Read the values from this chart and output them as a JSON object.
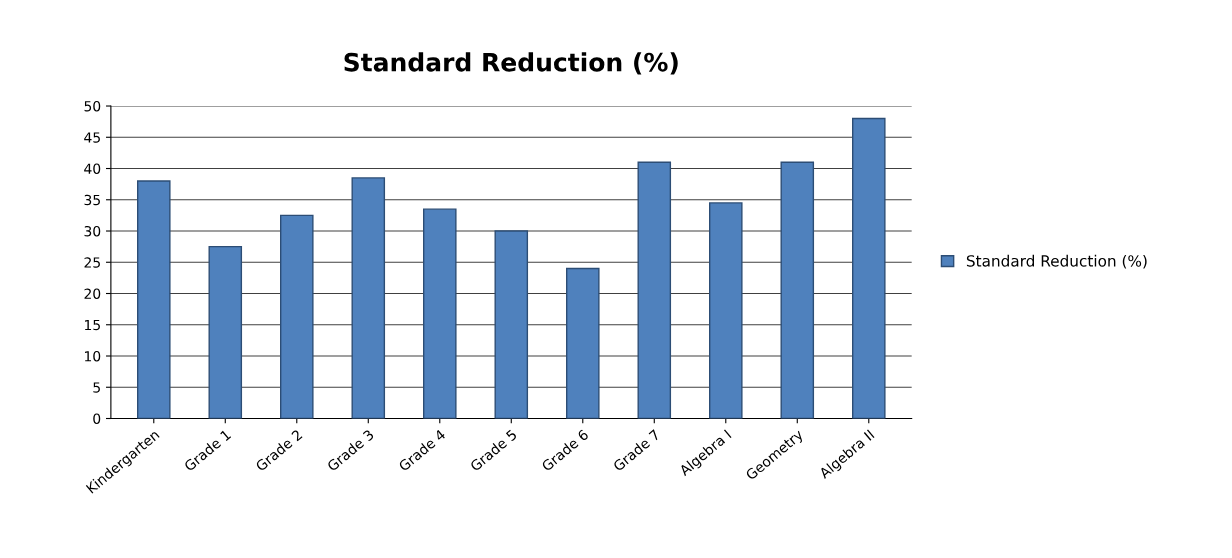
{
  "chart_data": {
    "type": "bar",
    "title": "Standard Reduction (%)",
    "categories": [
      "Kindergarten",
      "Grade 1",
      "Grade 2",
      "Grade 3",
      "Grade 4",
      "Grade 5",
      "Grade 6",
      "Grade 7",
      "Algebra I",
      "Geometry",
      "Algebra II"
    ],
    "series": [
      {
        "name": "Standard Reduction (%)",
        "color": "#4f81bd",
        "values": [
          38,
          27.5,
          32.5,
          38.5,
          33.5,
          30,
          24,
          41,
          34.5,
          41,
          48
        ]
      }
    ],
    "ylim": [
      0,
      50
    ],
    "yticks": [
      0,
      5,
      10,
      15,
      20,
      25,
      30,
      35,
      40,
      45,
      50
    ],
    "grid": "y",
    "legend": "right"
  }
}
